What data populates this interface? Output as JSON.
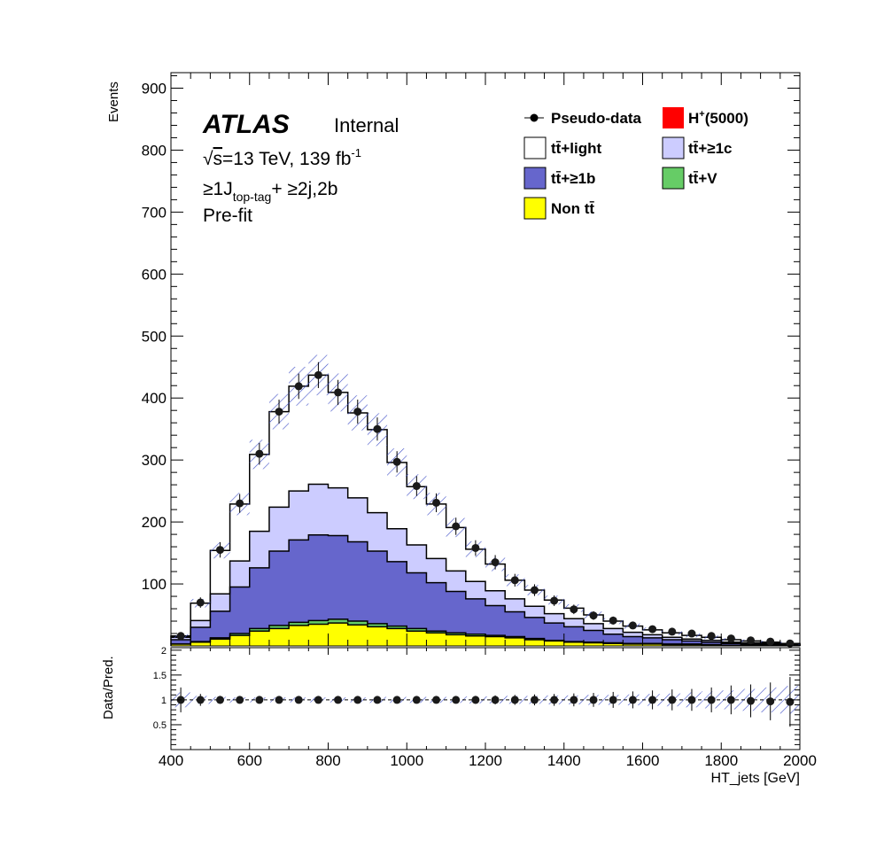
{
  "chart_data": [
    {
      "type": "area",
      "stacked": true,
      "ylabel": "Events",
      "ylim": [
        0,
        925
      ],
      "y_ticks": [
        "100",
        "200",
        "300",
        "400",
        "500",
        "600",
        "700",
        "800",
        "900"
      ],
      "bin_edges": [
        400,
        450,
        500,
        550,
        600,
        650,
        700,
        750,
        800,
        850,
        900,
        950,
        1000,
        1050,
        1100,
        1150,
        1200,
        1250,
        1300,
        1350,
        1400,
        1450,
        1500,
        1550,
        1600,
        1650,
        1700,
        1750,
        1800,
        1850,
        1900,
        1950,
        2000
      ],
      "atlas_label": "ATLAS",
      "atlas_status": "Internal",
      "energy_text": "s",
      "energy_value": "=13 TeV, 139 fb",
      "lumi_exponent": "-1",
      "region_prefix": "≥1J",
      "region_subscript": "top-tag",
      "region_suffix": "+ ≥2j,2b",
      "fit_state": "Pre-fit",
      "legend": {
        "pseudo_data": "Pseudo-data",
        "signal_prefix": "H",
        "signal_sup": "+",
        "signal_suffix": "(5000)",
        "light": "tt̄+light",
        "c": "tt̄+≥1c",
        "b": "tt̄+≥1b",
        "v": "tt̄+V",
        "non": "Non tt̄"
      },
      "series": [
        {
          "name": "Non tt̄",
          "color": "#ffff00",
          "values": [
            3,
            6,
            11,
            17,
            24,
            28,
            33,
            35,
            37,
            34,
            31,
            28,
            24,
            21,
            18,
            16,
            15,
            13,
            10,
            8,
            6,
            5,
            4,
            3,
            3,
            2,
            2,
            2,
            1,
            1,
            1,
            1
          ]
        },
        {
          "name": "tt̄+V",
          "color": "#66cc66",
          "values": [
            0,
            1,
            2,
            3,
            4,
            5,
            5,
            6,
            6,
            6,
            5,
            4,
            4,
            3,
            3,
            3,
            2,
            2,
            2,
            1,
            1,
            1,
            1,
            1,
            1,
            1,
            1,
            0,
            0,
            0,
            0,
            0
          ]
        },
        {
          "name": "tt̄+≥1b",
          "color": "#6666cc",
          "values": [
            7,
            23,
            43,
            75,
            98,
            120,
            133,
            138,
            135,
            128,
            117,
            104,
            90,
            78,
            67,
            57,
            48,
            40,
            34,
            28,
            24,
            19,
            14,
            11,
            9,
            7,
            5,
            4,
            3,
            2,
            2,
            1
          ]
        },
        {
          "name": "tt̄+≥1c",
          "color": "#ccccff",
          "values": [
            4,
            11,
            28,
            42,
            59,
            71,
            79,
            82,
            77,
            71,
            62,
            53,
            45,
            39,
            33,
            28,
            24,
            21,
            18,
            15,
            13,
            11,
            9,
            7,
            5,
            4,
            3,
            3,
            2,
            2,
            1,
            1
          ]
        },
        {
          "name": "tt̄+light",
          "color": "#ffffff",
          "values": [
            2,
            28,
            70,
            92,
            124,
            154,
            169,
            176,
            154,
            137,
            134,
            107,
            94,
            88,
            70,
            52,
            43,
            30,
            26,
            22,
            17,
            14,
            12,
            10,
            8,
            7,
            6,
            5,
            4,
            3,
            2,
            1
          ]
        }
      ],
      "pseudo_data": [
        16,
        70,
        155,
        230,
        310,
        378,
        419,
        437,
        409,
        378,
        350,
        297,
        258,
        231,
        193,
        158,
        135,
        106,
        90,
        73,
        59,
        49,
        41,
        33,
        27,
        23,
        20,
        16,
        12,
        9,
        7,
        4
      ],
      "uncertainty_fraction": 0.07
    },
    {
      "type": "scatter",
      "ylabel": "Data/Pred.",
      "xlabel": "HT_jets [GeV]",
      "xlim": [
        400,
        2000
      ],
      "ylim": [
        0,
        2.05
      ],
      "x_ticks": [
        "400",
        "600",
        "800",
        "1000",
        "1200",
        "1400",
        "1600",
        "1800",
        "2000"
      ],
      "y_ticks": [
        "0.5",
        "1",
        "1.5",
        "2"
      ],
      "ratio_values": [
        1,
        1,
        1,
        1,
        1,
        1,
        1,
        1,
        1,
        1,
        1,
        1,
        1,
        1,
        1,
        1,
        1,
        1,
        1,
        1,
        1,
        1,
        1,
        1,
        1,
        1,
        1,
        1,
        1,
        0.98,
        0.97,
        0.96
      ],
      "ratio_band_halfwidth": [
        0.15,
        0.08,
        0.06,
        0.05,
        0.05,
        0.05,
        0.05,
        0.05,
        0.05,
        0.05,
        0.06,
        0.06,
        0.06,
        0.06,
        0.06,
        0.07,
        0.07,
        0.08,
        0.08,
        0.09,
        0.09,
        0.1,
        0.1,
        0.11,
        0.12,
        0.13,
        0.15,
        0.17,
        0.19,
        0.22,
        0.25,
        0.28
      ],
      "ratio_error": [
        0.25,
        0.12,
        0.08,
        0.07,
        0.06,
        0.05,
        0.05,
        0.05,
        0.05,
        0.05,
        0.05,
        0.06,
        0.06,
        0.07,
        0.07,
        0.08,
        0.09,
        0.1,
        0.11,
        0.12,
        0.13,
        0.14,
        0.16,
        0.17,
        0.19,
        0.21,
        0.22,
        0.25,
        0.29,
        0.33,
        0.38,
        0.5
      ]
    }
  ]
}
